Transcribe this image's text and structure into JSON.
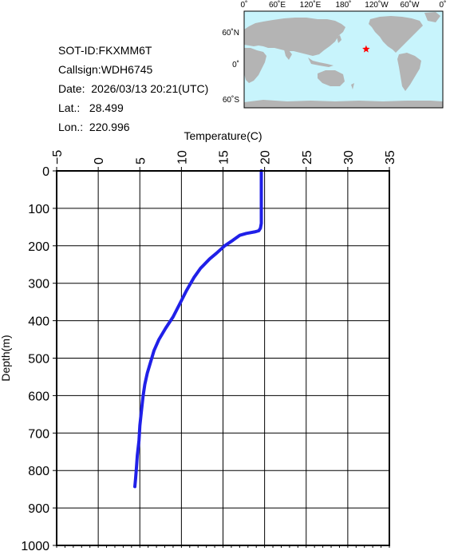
{
  "info": {
    "sot_id": "SOT-ID:FKXMM6T",
    "callsign": "Callsign:WDH6745",
    "date": "Date:  2026/03/13 20:21(UTC)",
    "lat": "Lat.:   28.499",
    "lon": "Lon.:  220.996"
  },
  "map": {
    "lon_labels": [
      "0˚",
      "60˚E",
      "120˚E",
      "180˚",
      "120˚W",
      "60˚W",
      "0˚"
    ],
    "lat_labels": [
      "60˚N",
      "0˚",
      "60˚S"
    ],
    "ocean_color": "#c8f4fc",
    "land_color": "#b4b4b4",
    "marker_color": "#ff0000",
    "marker_icon": "star-icon",
    "marker_lat": 28.499,
    "marker_lon": 220.996
  },
  "chart_data": {
    "type": "line",
    "xlabel": "Temperature(C)",
    "ylabel": "Depth(m)",
    "xlim": [
      -5,
      35
    ],
    "ylim": [
      0,
      1000
    ],
    "y_inverted": true,
    "x_axis_position": "top",
    "grid": true,
    "x_ticks": [
      -5,
      0,
      5,
      10,
      15,
      20,
      25,
      30,
      35
    ],
    "y_ticks": [
      0,
      100,
      200,
      300,
      400,
      500,
      600,
      700,
      800,
      900,
      1000
    ],
    "series": [
      {
        "color": "#2020e8",
        "x": [
          19.6,
          19.6,
          19.6,
          19.6,
          19.5,
          19.3,
          18.8,
          17.8,
          17.0,
          16.2,
          15.2,
          14.2,
          13.4,
          12.3,
          11.5,
          10.6,
          9.8,
          9.0,
          8.1,
          7.3,
          6.7,
          6.3,
          5.9,
          5.6,
          5.4,
          5.2,
          5.0,
          4.9,
          4.7,
          4.6,
          4.5,
          4.4
        ],
        "y": [
          0,
          50,
          100,
          140,
          153,
          160,
          163,
          167,
          172,
          185,
          200,
          220,
          235,
          260,
          285,
          320,
          355,
          390,
          420,
          450,
          480,
          510,
          540,
          570,
          600,
          640,
          680,
          720,
          760,
          790,
          820,
          843
        ]
      }
    ]
  }
}
